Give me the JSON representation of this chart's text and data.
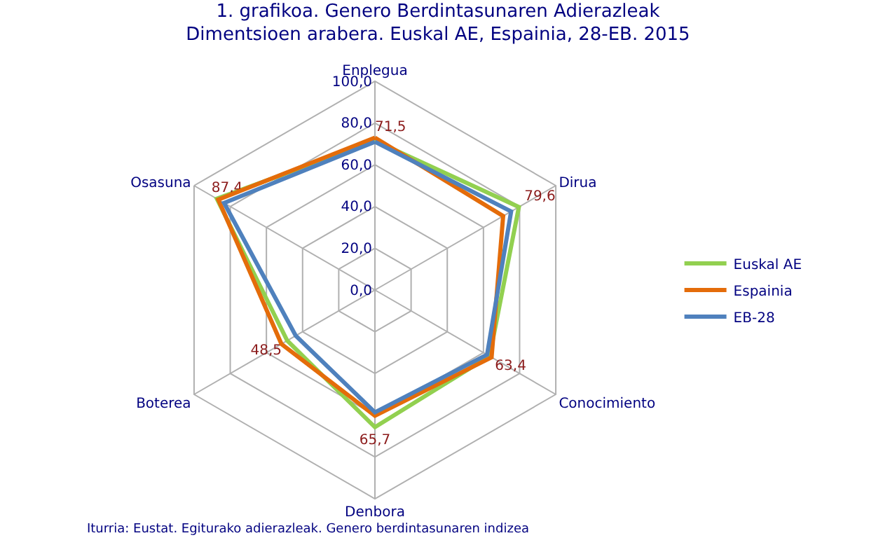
{
  "chart_data": {
    "type": "radar",
    "title": "1. grafikoa. Genero Berdintasunaren Adierazleak Dimentsioen arabera. Euskal AE, Espainia, 28-EB. 2015",
    "categories": [
      "Enplegua",
      "Dirua",
      "Conocimiento",
      "Denbora",
      "Boterea",
      "Osasuna"
    ],
    "series": [
      {
        "name": "Euskal AE",
        "color": "#92d050",
        "values": [
          71.5,
          79.6,
          63.4,
          65.7,
          48.5,
          87.4
        ],
        "value_labels": [
          "71,5",
          "79,6",
          "63,4",
          "65,7",
          "48,5",
          "87,4"
        ]
      },
      {
        "name": "Espainia",
        "color": "#e46c0a",
        "values": [
          73.0,
          70.9,
          64.5,
          60.2,
          51.7,
          86.6
        ]
      },
      {
        "name": "EB-28",
        "color": "#4f81bd",
        "values": [
          71.0,
          75.3,
          62.0,
          58.6,
          43.8,
          83.4
        ]
      }
    ],
    "ylim": [
      0,
      100
    ],
    "yticks": [
      {
        "value": 0,
        "label": "0,0"
      },
      {
        "value": 20,
        "label": "20,0"
      },
      {
        "value": 40,
        "label": "40,0"
      },
      {
        "value": 60,
        "label": "60,0"
      },
      {
        "value": 80,
        "label": "80,0"
      },
      {
        "value": 100,
        "label": "100,0"
      }
    ],
    "grid": true,
    "legend": "right",
    "marker": "none",
    "line_style": "solid",
    "annotations": [
      "Iturria: Eustat. Egiturako adierazleak. Genero berdintasunaren indizea"
    ]
  }
}
